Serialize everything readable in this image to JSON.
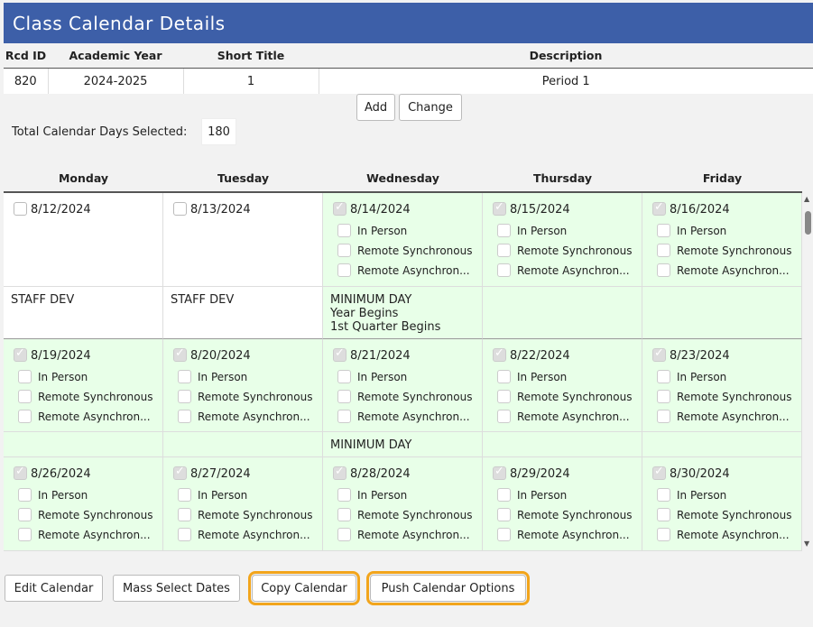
{
  "title": "Class Calendar Details",
  "record_table": {
    "headers": [
      "Rcd ID",
      "Academic Year",
      "Short Title",
      "Description"
    ],
    "row": [
      "820",
      "2024-2025",
      "1",
      "Period 1"
    ]
  },
  "actions": {
    "add": "Add",
    "change": "Change"
  },
  "total": {
    "label": "Total Calendar Days Selected:",
    "value": "180"
  },
  "days": [
    "Monday",
    "Tuesday",
    "Wednesday",
    "Thursday",
    "Friday"
  ],
  "session_options": [
    "In Person",
    "Remote Synchronous",
    "Remote Asynchron..."
  ],
  "weeks": [
    {
      "dates": [
        {
          "date": "8/12/2024",
          "school_day": false,
          "note": "STAFF DEV"
        },
        {
          "date": "8/13/2024",
          "school_day": false,
          "note": "STAFF DEV"
        },
        {
          "date": "8/14/2024",
          "school_day": true,
          "note": "MINIMUM DAY\nYear Begins\n1st Quarter Begins"
        },
        {
          "date": "8/15/2024",
          "school_day": true,
          "note": ""
        },
        {
          "date": "8/16/2024",
          "school_day": true,
          "note": ""
        }
      ]
    },
    {
      "dates": [
        {
          "date": "8/19/2024",
          "school_day": true,
          "note": ""
        },
        {
          "date": "8/20/2024",
          "school_day": true,
          "note": ""
        },
        {
          "date": "8/21/2024",
          "school_day": true,
          "note": "MINIMUM DAY"
        },
        {
          "date": "8/22/2024",
          "school_day": true,
          "note": ""
        },
        {
          "date": "8/23/2024",
          "school_day": true,
          "note": ""
        }
      ]
    },
    {
      "dates": [
        {
          "date": "8/26/2024",
          "school_day": true,
          "note": ""
        },
        {
          "date": "8/27/2024",
          "school_day": true,
          "note": ""
        },
        {
          "date": "8/28/2024",
          "school_day": true,
          "note": ""
        },
        {
          "date": "8/29/2024",
          "school_day": true,
          "note": ""
        },
        {
          "date": "8/30/2024",
          "school_day": true,
          "note": ""
        }
      ]
    }
  ],
  "bottom_buttons": {
    "edit": "Edit Calendar",
    "mass_select": "Mass Select Dates",
    "copy": "Copy Calendar",
    "push": "Push Calendar Options"
  },
  "colors": {
    "header": "#3d5fa8",
    "school_day": "#e8ffe8",
    "highlight": "#f2a51c"
  }
}
